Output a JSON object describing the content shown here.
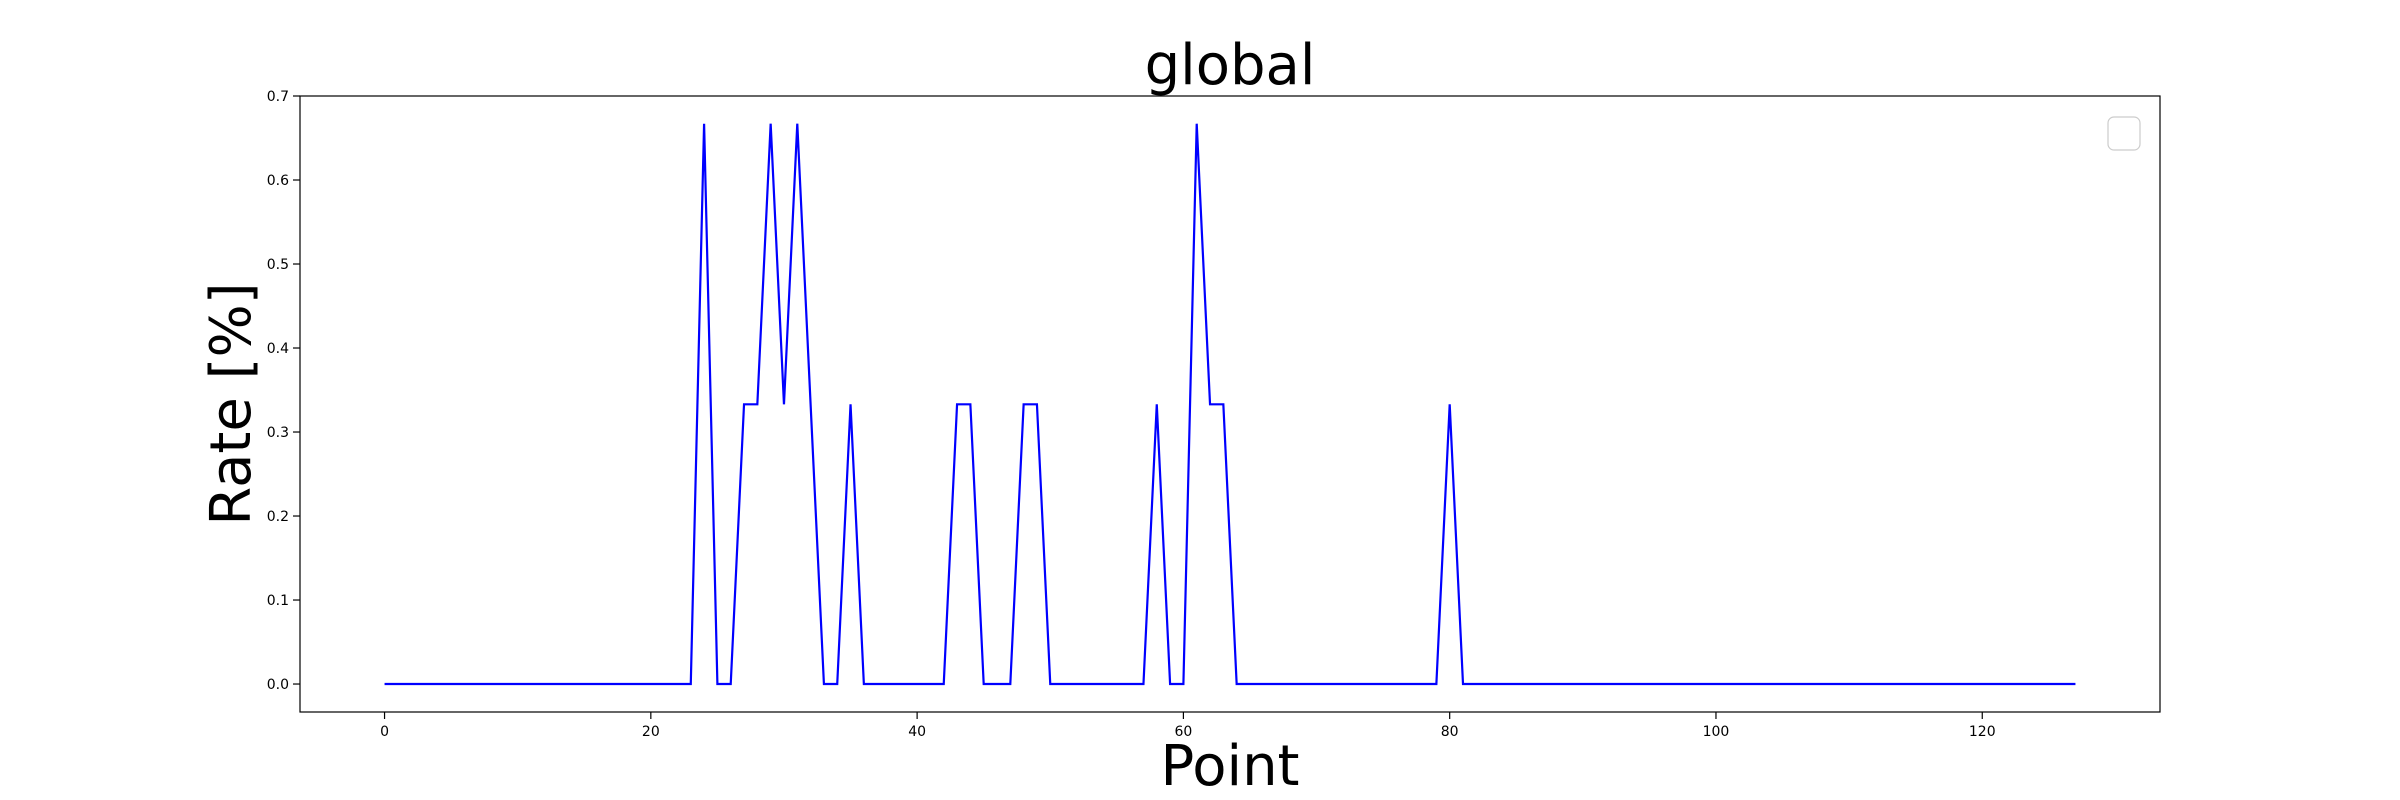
{
  "chart_data": {
    "type": "line",
    "title": "global",
    "xlabel": "Point",
    "ylabel": "Rate [%]",
    "xlim": [
      -6.35,
      133.35
    ],
    "ylim": [
      -0.0333,
      0.7
    ],
    "xticks": [
      0,
      20,
      40,
      60,
      80,
      100,
      120
    ],
    "xtick_labels": [
      "0",
      "20",
      "40",
      "60",
      "80",
      "100",
      "120"
    ],
    "yticks": [
      0.0,
      0.1,
      0.2,
      0.3,
      0.4,
      0.5,
      0.6,
      0.7
    ],
    "ytick_labels": [
      "0.0",
      "0.1",
      "0.2",
      "0.3",
      "0.4",
      "0.5",
      "0.6",
      "0.7"
    ],
    "grid": false,
    "legend": "top-right",
    "series": [
      {
        "color": "#0000ff",
        "x": [
          0,
          1,
          2,
          3,
          4,
          5,
          6,
          7,
          8,
          9,
          10,
          11,
          12,
          13,
          14,
          15,
          16,
          17,
          18,
          19,
          20,
          21,
          22,
          23,
          24,
          25,
          26,
          27,
          28,
          29,
          30,
          31,
          32,
          33,
          34,
          35,
          36,
          37,
          38,
          39,
          40,
          41,
          42,
          43,
          44,
          45,
          46,
          47,
          48,
          49,
          50,
          51,
          52,
          53,
          54,
          55,
          56,
          57,
          58,
          59,
          60,
          61,
          62,
          63,
          64,
          65,
          66,
          67,
          68,
          69,
          70,
          71,
          72,
          73,
          74,
          75,
          76,
          77,
          78,
          79,
          80,
          81,
          82,
          83,
          84,
          85,
          86,
          87,
          88,
          89,
          90,
          91,
          92,
          93,
          94,
          95,
          96,
          97,
          98,
          99,
          100,
          101,
          102,
          103,
          104,
          105,
          106,
          107,
          108,
          109,
          110,
          111,
          112,
          113,
          114,
          115,
          116,
          117,
          118,
          119,
          120,
          121,
          122,
          123,
          124,
          125,
          126,
          127
        ],
        "y": [
          0,
          0,
          0,
          0,
          0,
          0,
          0,
          0,
          0,
          0,
          0,
          0,
          0,
          0,
          0,
          0,
          0,
          0,
          0,
          0,
          0,
          0,
          0,
          0,
          0.667,
          0,
          0,
          0.333,
          0.333,
          0.667,
          0.333,
          0.667,
          0.333,
          0,
          0,
          0.333,
          0,
          0,
          0,
          0,
          0,
          0,
          0,
          0.333,
          0.333,
          0,
          0,
          0,
          0.333,
          0.333,
          0,
          0,
          0,
          0,
          0,
          0,
          0,
          0,
          0.333,
          0,
          0,
          0.667,
          0.333,
          0.333,
          0,
          0,
          0,
          0,
          0,
          0,
          0,
          0,
          0,
          0,
          0,
          0,
          0,
          0,
          0,
          0,
          0.333,
          0,
          0,
          0,
          0,
          0,
          0,
          0,
          0,
          0,
          0,
          0,
          0,
          0,
          0,
          0,
          0,
          0,
          0,
          0,
          0,
          0,
          0,
          0,
          0,
          0,
          0,
          0,
          0,
          0,
          0,
          0,
          0,
          0,
          0,
          0,
          0,
          0,
          0,
          0,
          0,
          0,
          0,
          0,
          0,
          0,
          0,
          0
        ]
      }
    ]
  }
}
